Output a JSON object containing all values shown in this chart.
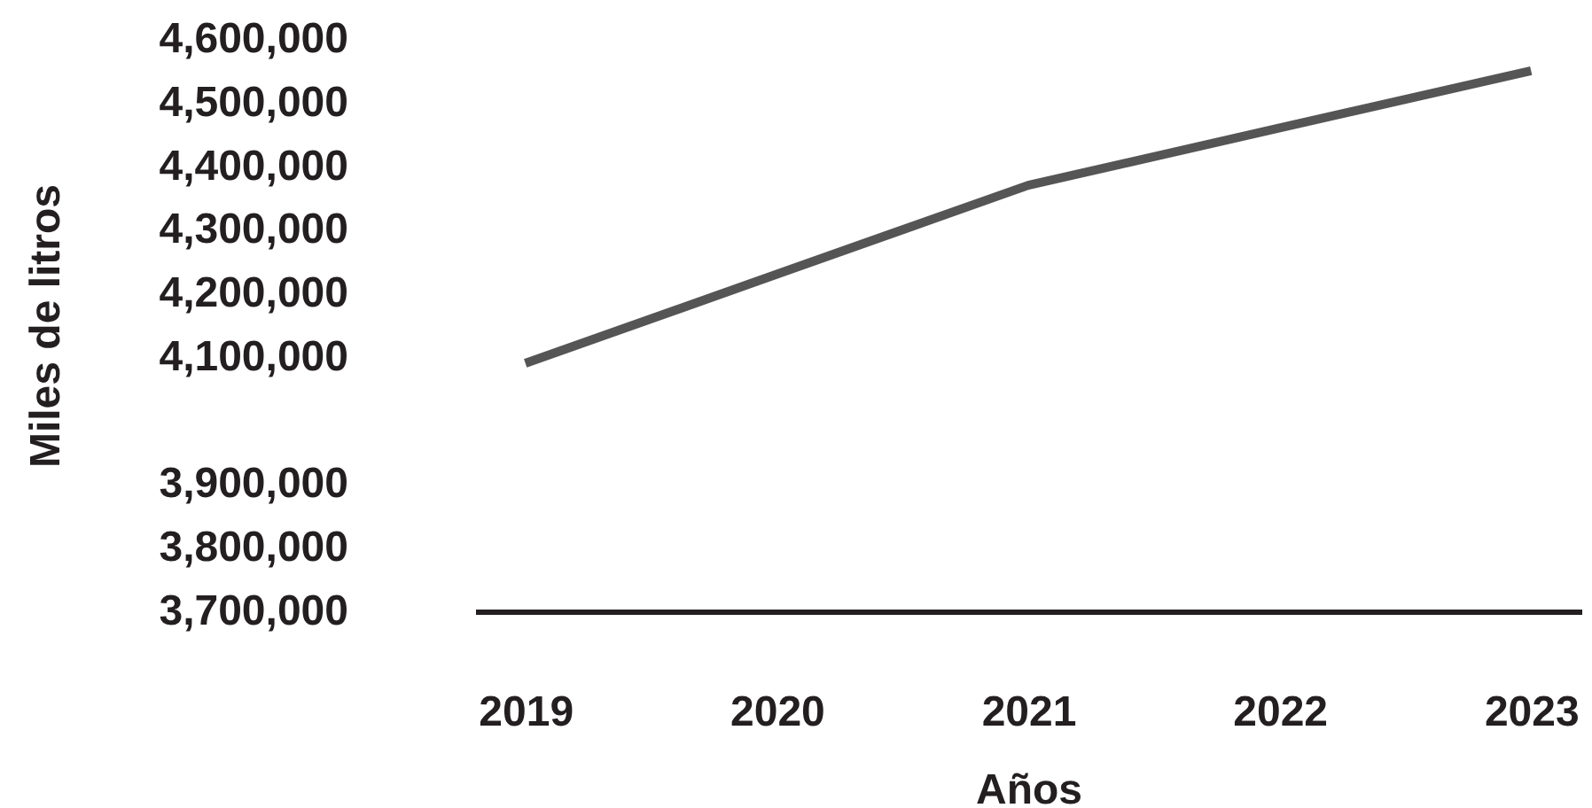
{
  "chart_data": {
    "type": "line",
    "xlabel": "Años",
    "ylabel": "Miles de litros",
    "categories": [
      "2019",
      "2020",
      "2021",
      "2022",
      "2023"
    ],
    "series": [
      {
        "color": "#555555",
        "values": [
          4090000,
          4230000,
          4370000,
          4460000,
          4550000
        ]
      }
    ],
    "ylim": [
      3700000,
      4600000
    ],
    "yticks": [
      {
        "value": 3700000,
        "label": "3,700,000"
      },
      {
        "value": 3800000,
        "label": "3,800,000"
      },
      {
        "value": 3900000,
        "label": "3,900,000"
      },
      {
        "value": 4100000,
        "label": "4,100,000"
      },
      {
        "value": 4200000,
        "label": "4,200,000"
      },
      {
        "value": 4300000,
        "label": "4,300,000"
      },
      {
        "value": 4400000,
        "label": "4,400,000"
      },
      {
        "value": 4500000,
        "label": "4,500,000"
      },
      {
        "value": 4600000,
        "label": "4,600,000"
      }
    ],
    "grid": false,
    "marker": "none",
    "line_style": "solid"
  }
}
